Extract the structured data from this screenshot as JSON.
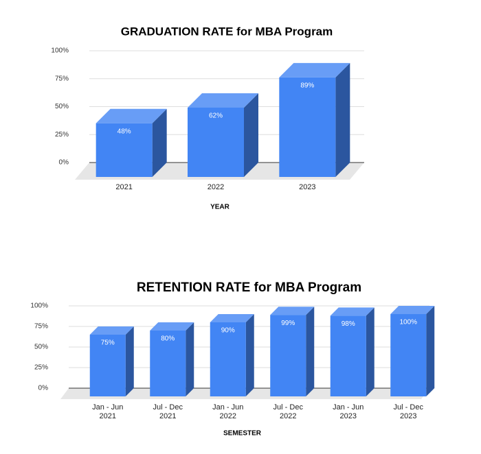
{
  "chart_data": [
    {
      "type": "bar3d",
      "title": "GRADUATION RATE for MBA Program",
      "x_label": "YEAR",
      "categories": [
        "2021",
        "2022",
        "2023"
      ],
      "values": [
        48,
        62,
        89
      ],
      "value_labels": [
        "48%",
        "62%",
        "89%"
      ],
      "color": "#4285f4",
      "ylim": [
        0,
        100
      ],
      "yticks": [
        {
          "value": 0,
          "label": "0%"
        },
        {
          "value": 25,
          "label": "25%"
        },
        {
          "value": 50,
          "label": "50%"
        },
        {
          "value": 75,
          "label": "75%"
        },
        {
          "value": 100,
          "label": "100%"
        }
      ],
      "grid": true
    },
    {
      "type": "bar3d",
      "title": "RETENTION RATE for MBA Program",
      "x_label": "SEMESTER",
      "categories": [
        "Jan - Jun 2021",
        "Jul - Dec 2021",
        "Jan - Jun 2022",
        "Jul - Dec 2022",
        "Jan - Jun 2023",
        "Jul - Dec 2023"
      ],
      "values": [
        75,
        80,
        90,
        99,
        98,
        100
      ],
      "value_labels": [
        "75%",
        "80%",
        "90%",
        "99%",
        "98%",
        "100%"
      ],
      "color": "#4285f4",
      "ylim": [
        0,
        100
      ],
      "yticks": [
        {
          "value": 0,
          "label": "0%"
        },
        {
          "value": 25,
          "label": "25%"
        },
        {
          "value": 50,
          "label": "50%"
        },
        {
          "value": 75,
          "label": "75%"
        },
        {
          "value": 100,
          "label": "100%"
        }
      ],
      "grid": true
    }
  ]
}
